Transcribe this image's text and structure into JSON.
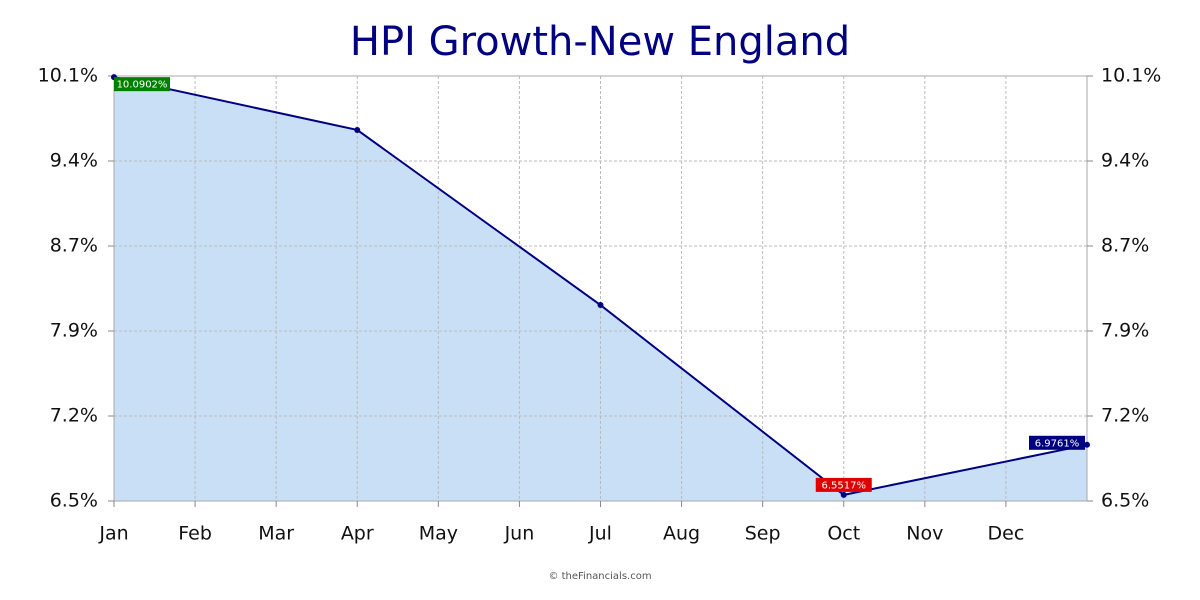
{
  "chart_data": {
    "type": "area",
    "title": "HPI Growth-New England",
    "x": [
      0,
      3,
      6,
      9,
      12
    ],
    "values": [
      10.0902,
      9.643,
      8.16,
      6.5517,
      6.9761
    ],
    "value_labels": [
      "10.0902%",
      null,
      null,
      "6.5517%",
      "6.9761%"
    ],
    "value_label_colors": [
      "#008000",
      null,
      null,
      "#e00000",
      "#000080"
    ],
    "color": "#000080",
    "fill": "#c9dff5",
    "xlim": [
      0,
      12
    ],
    "xticks": [
      {
        "value": 0,
        "label": "Jan"
      },
      {
        "value": 1,
        "label": "Feb"
      },
      {
        "value": 2,
        "label": "Mar"
      },
      {
        "value": 3,
        "label": "Apr"
      },
      {
        "value": 4,
        "label": "May"
      },
      {
        "value": 5,
        "label": "Jun"
      },
      {
        "value": 6,
        "label": "Jul"
      },
      {
        "value": 7,
        "label": "Aug"
      },
      {
        "value": 8,
        "label": "Sep"
      },
      {
        "value": 9,
        "label": "Oct"
      },
      {
        "value": 10,
        "label": "Nov"
      },
      {
        "value": 11,
        "label": "Dec"
      }
    ],
    "ylim": [
      6.5,
      10.1
    ],
    "yticks": [
      {
        "value": 6.5,
        "label": "6.5%"
      },
      {
        "value": 7.22,
        "label": "7.2%"
      },
      {
        "value": 7.94,
        "label": "7.9%"
      },
      {
        "value": 8.66,
        "label": "8.7%"
      },
      {
        "value": 9.38,
        "label": "9.4%"
      },
      {
        "value": 10.1,
        "label": "10.1%"
      }
    ],
    "grid": true,
    "source": "© theFinancials.com"
  }
}
